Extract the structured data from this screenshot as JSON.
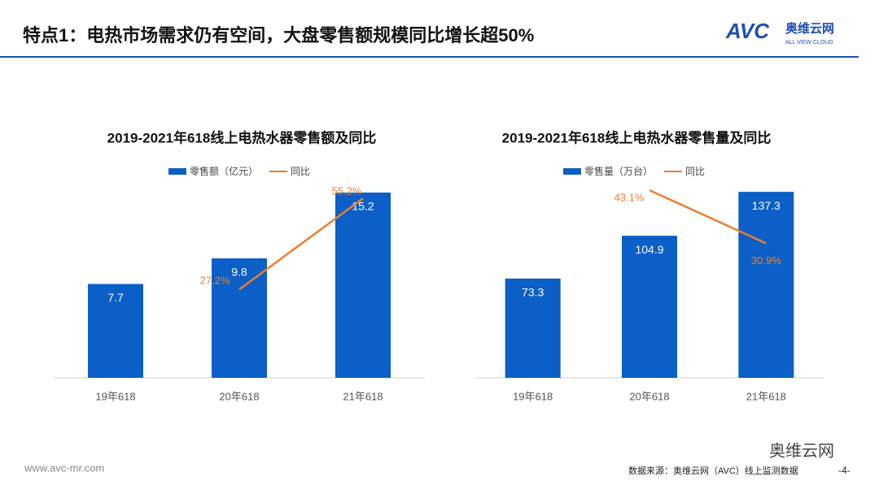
{
  "header": {
    "title": "特点1：电热市场需求仍有空间，大盘零售额规模同比增长超50%",
    "logo": "AVC",
    "logo_name": "奥维云网",
    "logo_sub": "ALL VIEW CLOUD"
  },
  "footer": {
    "website": "www.avc-mr.com",
    "source": "数据来源：奥维云网（AVC）线上监测数据",
    "page": "-4-",
    "wechat": "奥维云网"
  },
  "chart_data": [
    {
      "type": "bar",
      "title": "2019-2021年618线上电热水器零售额及同比",
      "categories": [
        "19年618",
        "20年618",
        "21年618"
      ],
      "series": [
        {
          "name": "零售额（亿元）",
          "color": "#0b5fc6",
          "values": [
            7.7,
            9.8,
            15.2
          ]
        },
        {
          "name": "同比",
          "type": "line",
          "axis": "y2",
          "color": "#ed7d31",
          "values": [
            null,
            27.2,
            55.2
          ],
          "value_labels": [
            null,
            "27.2%",
            "55.2%"
          ]
        }
      ],
      "ylim": [
        0,
        20
      ],
      "y2lim": [
        0,
        75
      ],
      "grid": false,
      "legend": "top"
    },
    {
      "type": "bar",
      "title": "2019-2021年618线上电热水器零售量及同比",
      "categories": [
        "19年618",
        "20年618",
        "21年618"
      ],
      "series": [
        {
          "name": "零售量（万台）",
          "color": "#0b5fc6",
          "values": [
            73.3,
            104.9,
            137.3
          ]
        },
        {
          "name": "同比",
          "type": "line",
          "axis": "y2",
          "color": "#ed7d31",
          "values": [
            null,
            43.1,
            30.9
          ],
          "value_labels": [
            null,
            "43.1%",
            "30.9%"
          ]
        }
      ],
      "ylim": [
        0,
        180
      ],
      "y2lim": [
        0,
        56
      ],
      "grid": false,
      "legend": "top"
    }
  ]
}
